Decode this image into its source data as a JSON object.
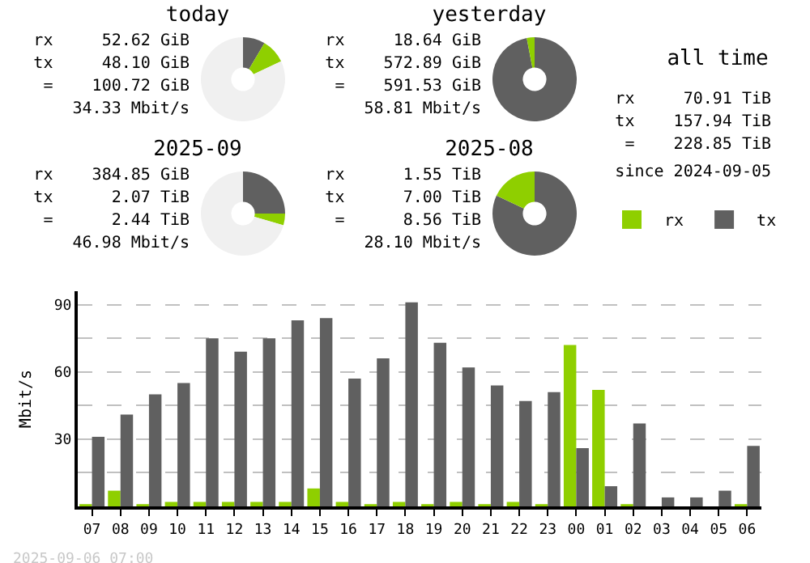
{
  "chart_data": [
    {
      "type": "donut",
      "title": "today",
      "categories": [
        null,
        null,
        null
      ],
      "values": [
        8.5,
        9.5,
        82
      ],
      "colors": [
        "#606060",
        "#8fcf00",
        "#f0f0f0"
      ],
      "annotations": [
        "rx     52.62 GiB",
        "tx     48.10 GiB",
        " =    100.72 GiB",
        "34.33 Mbit/s"
      ]
    },
    {
      "type": "donut",
      "title": "yesterday",
      "categories": [
        null,
        null
      ],
      "values": [
        97,
        3
      ],
      "colors": [
        "#606060",
        "#8fcf00"
      ],
      "annotations": [
        "rx     18.64 GiB",
        "tx    572.89 GiB",
        " =    591.53 GiB",
        "58.81 Mbit/s"
      ]
    },
    {
      "type": "other",
      "title": "all time",
      "annotations": [
        "rx     70.91 TiB",
        "tx    157.94 TiB",
        " =    228.85 TiB",
        "since 2024-09-05"
      ]
    },
    {
      "type": "donut",
      "title": "2025-09",
      "categories": [
        null,
        null,
        null
      ],
      "values": [
        25,
        4.5,
        70.5
      ],
      "colors": [
        "#606060",
        "#8fcf00",
        "#f0f0f0"
      ],
      "annotations": [
        "rx    384.85 GiB",
        "tx      2.07 TiB",
        " =      2.44 TiB",
        "46.98 Mbit/s"
      ]
    },
    {
      "type": "donut",
      "title": "2025-08",
      "categories": [
        null,
        null
      ],
      "values": [
        82,
        18
      ],
      "colors": [
        "#606060",
        "#8fcf00"
      ],
      "annotations": [
        "rx      1.55 TiB",
        "tx      7.00 TiB",
        " =      8.56 TiB",
        "28.10 Mbit/s"
      ]
    },
    {
      "type": "bar",
      "ylabel": "Mbit/s",
      "categories": [
        "07",
        "08",
        "09",
        "10",
        "11",
        "12",
        "13",
        "14",
        "15",
        "16",
        "17",
        "18",
        "19",
        "20",
        "21",
        "22",
        "23",
        "00",
        "01",
        "02",
        "03",
        "04",
        "05",
        "06"
      ],
      "series": [
        {
          "name": "rx",
          "color": "#8fcf00",
          "values": [
            1,
            7,
            1,
            2,
            2,
            2,
            2,
            2,
            8,
            2,
            1,
            2,
            1,
            2,
            1,
            2,
            1,
            72,
            52,
            1,
            0,
            0,
            0,
            1
          ]
        },
        {
          "name": "tx",
          "color": "#606060",
          "values": [
            31,
            41,
            50,
            55,
            75,
            69,
            75,
            83,
            84,
            57,
            66,
            91,
            73,
            62,
            54,
            47,
            51,
            26,
            9,
            37,
            4,
            4,
            7,
            27
          ]
        }
      ],
      "ylim": [
        0,
        96
      ],
      "yticks": [
        {
          "value": 15,
          "label": null
        },
        30,
        {
          "value": 45,
          "label": null
        },
        60,
        {
          "value": 75,
          "label": null
        },
        90
      ],
      "grid": "y",
      "legend": "top right",
      "annotations": [
        "2025-09-06 07:00"
      ]
    }
  ]
}
